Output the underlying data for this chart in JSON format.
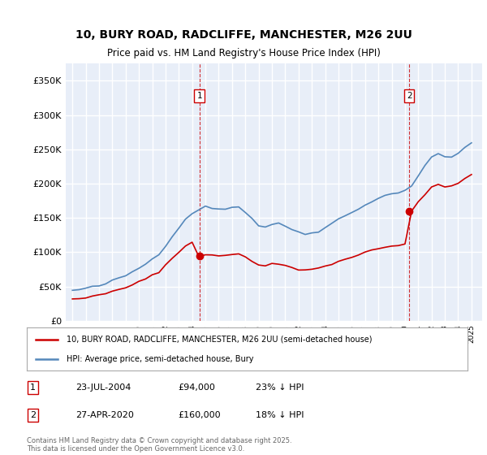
{
  "title_line1": "10, BURY ROAD, RADCLIFFE, MANCHESTER, M26 2UU",
  "title_line2": "Price paid vs. HM Land Registry's House Price Index (HPI)",
  "background_color": "#ffffff",
  "plot_bg_color": "#e8eef8",
  "grid_color": "#ffffff",
  "red_color": "#cc0000",
  "blue_color": "#5588bb",
  "sale1_date_num": 2004.55,
  "sale1_price": 94000,
  "sale1_label": "1",
  "sale2_date_num": 2020.32,
  "sale2_price": 160000,
  "sale2_label": "2",
  "legend_label_red": "10, BURY ROAD, RADCLIFFE, MANCHESTER, M26 2UU (semi-detached house)",
  "legend_label_blue": "HPI: Average price, semi-detached house, Bury",
  "note1_box": "1",
  "note1_date": "23-JUL-2004",
  "note1_price": "£94,000",
  "note1_hpi": "23% ↓ HPI",
  "note2_box": "2",
  "note2_date": "27-APR-2020",
  "note2_price": "£160,000",
  "note2_hpi": "18% ↓ HPI",
  "footer": "Contains HM Land Registry data © Crown copyright and database right 2025.\nThis data is licensed under the Open Government Licence v3.0.",
  "ylim_max": 375000,
  "ylim_min": 0,
  "xlim_min": 1994.5,
  "xlim_max": 2025.8,
  "yticks": [
    0,
    50000,
    100000,
    150000,
    200000,
    250000,
    300000,
    350000
  ],
  "ytick_labels": [
    "£0",
    "£50K",
    "£100K",
    "£150K",
    "£200K",
    "£250K",
    "£300K",
    "£350K"
  ],
  "years_hpi": [
    1995.0,
    1995.5,
    1996.0,
    1996.5,
    1997.0,
    1997.5,
    1998.0,
    1998.5,
    1999.0,
    1999.5,
    2000.0,
    2000.5,
    2001.0,
    2001.5,
    2002.0,
    2002.5,
    2003.0,
    2003.5,
    2004.0,
    2004.5,
    2005.0,
    2005.5,
    2006.0,
    2006.5,
    2007.0,
    2007.5,
    2008.0,
    2008.5,
    2009.0,
    2009.5,
    2010.0,
    2010.5,
    2011.0,
    2011.5,
    2012.0,
    2012.5,
    2013.0,
    2013.5,
    2014.0,
    2014.5,
    2015.0,
    2015.5,
    2016.0,
    2016.5,
    2017.0,
    2017.5,
    2018.0,
    2018.5,
    2019.0,
    2019.5,
    2020.0,
    2020.5,
    2021.0,
    2021.5,
    2022.0,
    2022.5,
    2023.0,
    2023.5,
    2024.0,
    2024.5,
    2025.0
  ],
  "hpi_values": [
    44000,
    45500,
    47000,
    49000,
    51000,
    54000,
    58000,
    62000,
    66000,
    71000,
    77000,
    83000,
    90000,
    98000,
    110000,
    123000,
    136000,
    148000,
    157000,
    163000,
    166000,
    164000,
    163000,
    164000,
    166000,
    166000,
    159000,
    149000,
    139000,
    137000,
    141000,
    141000,
    138000,
    134000,
    129000,
    127000,
    128000,
    131000,
    137000,
    142000,
    148000,
    153000,
    158000,
    163000,
    170000,
    174000,
    179000,
    182000,
    185000,
    188000,
    190000,
    197000,
    212000,
    226000,
    238000,
    243000,
    240000,
    239000,
    244000,
    252000,
    260000
  ],
  "red_values": [
    32000,
    33000,
    34000,
    35500,
    37000,
    39500,
    42500,
    45500,
    48500,
    52000,
    56500,
    61000,
    66000,
    72000,
    81000,
    91000,
    100000,
    109000,
    116000,
    94000,
    96000,
    95000,
    95000,
    96000,
    97000,
    97000,
    93000,
    87000,
    81000,
    80000,
    83000,
    83000,
    81000,
    78000,
    75000,
    74000,
    75000,
    77000,
    80000,
    83000,
    87000,
    90000,
    93000,
    96000,
    100000,
    102000,
    105000,
    107000,
    109000,
    111000,
    112000,
    160000,
    172000,
    184000,
    195000,
    199000,
    196000,
    196000,
    200000,
    207000,
    214000
  ]
}
